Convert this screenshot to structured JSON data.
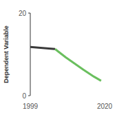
{
  "chart_data": {
    "type": "line",
    "y_label": "Dependent Variable",
    "x": [
      1999,
      2006,
      2009,
      2014,
      2017,
      2019
    ],
    "series": [
      {
        "color": "#3a3a3a",
        "values": [
          11.8,
          11.3,
          null,
          null,
          null,
          null
        ]
      },
      {
        "color": "#6abf5e",
        "values": [
          null,
          11.3,
          9.3,
          6.3,
          4.6,
          3.6
        ]
      }
    ],
    "xlim": [
      1999,
      2020
    ],
    "xticks": [
      1999,
      2020
    ],
    "ylim": [
      0,
      20
    ],
    "yticks": [
      0,
      20
    ],
    "grid": false
  }
}
